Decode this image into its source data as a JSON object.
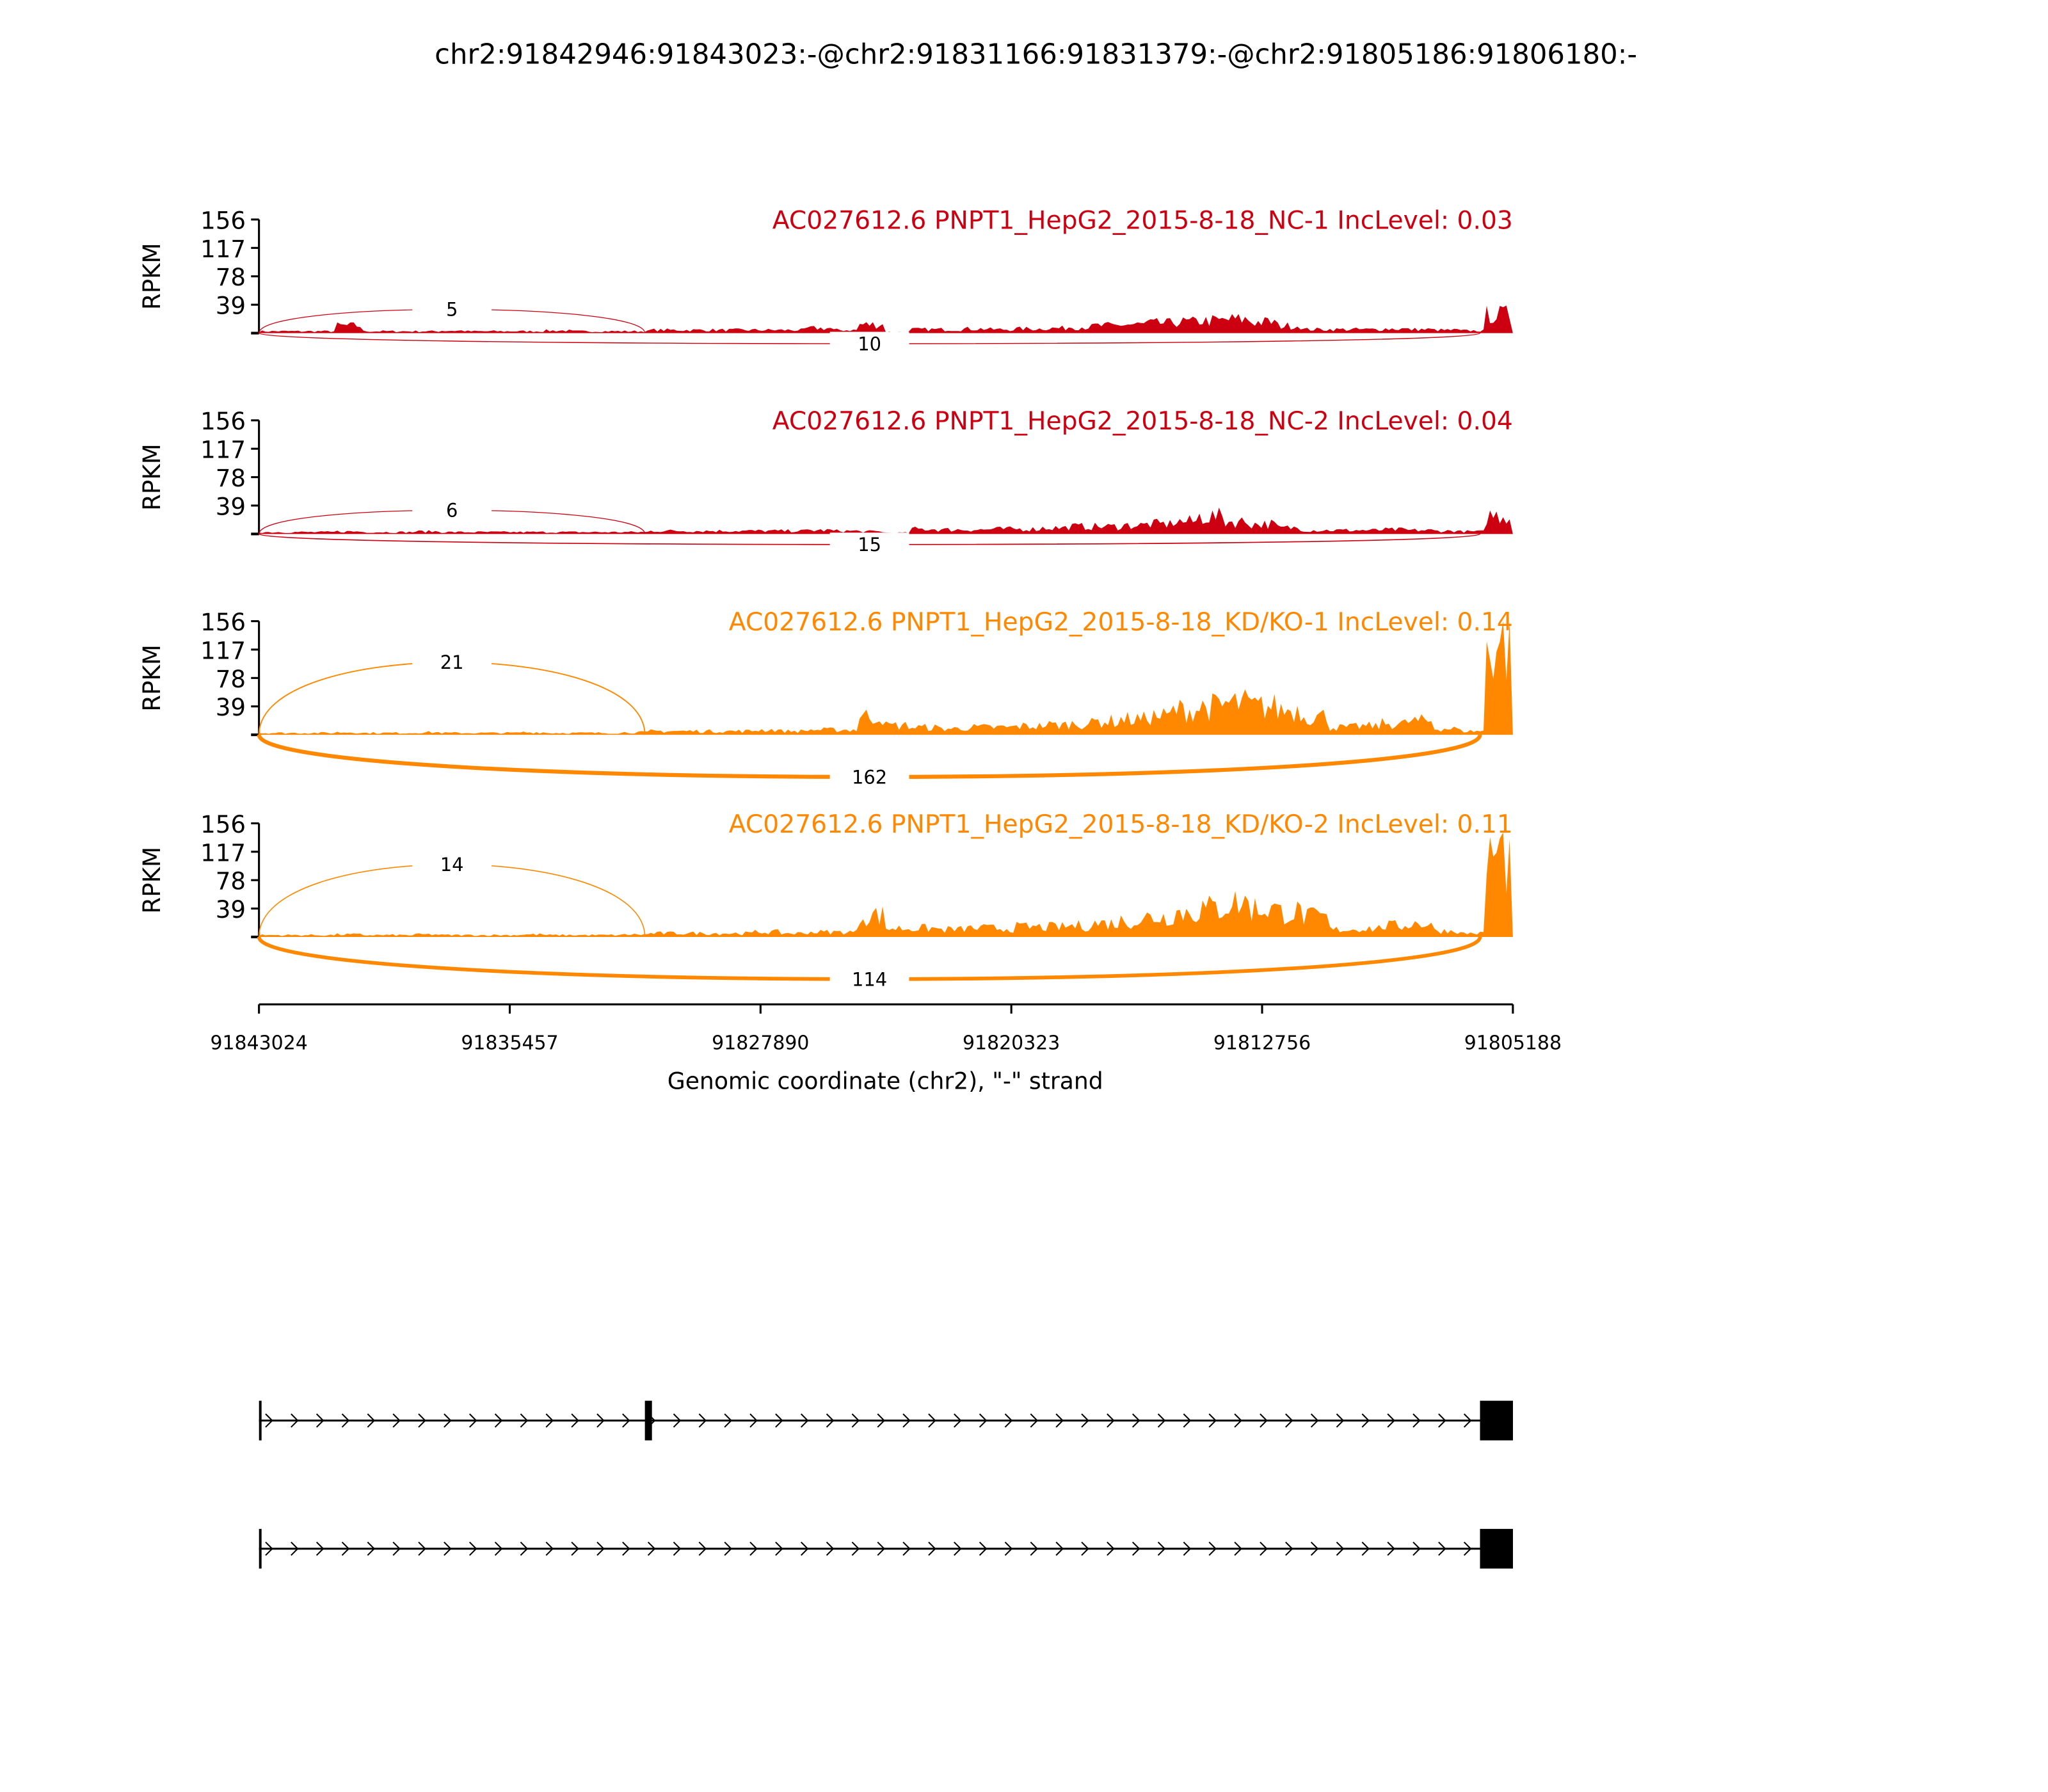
{
  "chart_data": {
    "type": "area",
    "title": "chr2:91842946:91843023:-@chr2:91831166:91831379:-@chr2:91805186:91806180:-",
    "xlabel": "Genomic coordinate (chr2), \"-\" strand",
    "ylabel": "RPKM",
    "xlim": [
      91843024,
      91805188
    ],
    "x_ticks": [
      "91843024",
      "91835457",
      "91827890",
      "91820323",
      "91812756",
      "91805188"
    ],
    "ylim": [
      0,
      156
    ],
    "y_ticks": [
      "156",
      "117",
      "78",
      "39"
    ],
    "colors": {
      "NC": "#cc0011",
      "KD": "#ff8800"
    },
    "tracks": [
      {
        "label": "AC027612.6 PNPT1_HepG2_2015-8-18_NC-1 IncLevel: 0.03",
        "group": "NC",
        "junctions": [
          {
            "from": 91843023,
            "to": 91831379,
            "count": "5",
            "side": "top"
          },
          {
            "from": 91843023,
            "to": 91806180,
            "count": "10",
            "side": "bottom"
          }
        ],
        "coverage_bins": [
          3,
          3,
          3,
          12,
          3,
          3,
          3,
          4,
          3,
          3,
          3,
          4,
          3,
          3,
          3,
          5,
          5,
          5,
          5,
          5,
          5,
          8,
          5,
          14,
          2,
          6,
          6,
          7,
          6,
          7,
          8,
          10,
          12,
          14,
          16,
          18,
          20,
          22,
          18,
          12,
          6,
          6,
          6,
          7,
          6,
          5,
          4,
          30
        ]
      },
      {
        "label": "AC027612.6 PNPT1_HepG2_2015-8-18_NC-2 IncLevel: 0.04",
        "group": "NC",
        "junctions": [
          {
            "from": 91843023,
            "to": 91831379,
            "count": "6",
            "side": "top"
          },
          {
            "from": 91843023,
            "to": 91806180,
            "count": "15",
            "side": "bottom"
          }
        ],
        "coverage_bins": [
          3,
          3,
          3,
          4,
          3,
          3,
          4,
          3,
          3,
          3,
          3,
          3,
          3,
          3,
          3,
          5,
          5,
          5,
          5,
          5,
          5,
          6,
          5,
          4,
          2,
          8,
          7,
          7,
          8,
          8,
          10,
          12,
          12,
          14,
          16,
          20,
          28,
          20,
          16,
          10,
          6,
          6,
          6,
          7,
          6,
          5,
          4,
          30
        ]
      },
      {
        "label": "AC027612.6 PNPT1_HepG2_2015-8-18_KD/KO-1 IncLevel: 0.14",
        "group": "KD",
        "junctions": [
          {
            "from": 91843023,
            "to": 91831379,
            "count": "21",
            "side": "top"
          },
          {
            "from": 91843023,
            "to": 91806180,
            "count": "162",
            "side": "bottom"
          }
        ],
        "coverage_bins": [
          3,
          3,
          3,
          4,
          3,
          3,
          4,
          3,
          3,
          3,
          4,
          3,
          3,
          3,
          4,
          6,
          6,
          6,
          6,
          8,
          6,
          8,
          8,
          30,
          15,
          12,
          10,
          12,
          12,
          14,
          16,
          18,
          22,
          25,
          30,
          40,
          45,
          50,
          45,
          40,
          30,
          12,
          14,
          18,
          22,
          10,
          6,
          150
        ]
      },
      {
        "label": "AC027612.6 PNPT1_HepG2_2015-8-18_KD/KO-2 IncLevel: 0.11",
        "group": "KD",
        "junctions": [
          {
            "from": 91843023,
            "to": 91831379,
            "count": "14",
            "side": "top"
          },
          {
            "from": 91843023,
            "to": 91806180,
            "count": "114",
            "side": "bottom"
          }
        ],
        "coverage_bins": [
          3,
          3,
          3,
          4,
          3,
          3,
          4,
          3,
          3,
          3,
          4,
          3,
          3,
          3,
          4,
          6,
          6,
          6,
          6,
          8,
          6,
          8,
          8,
          35,
          14,
          14,
          12,
          14,
          14,
          16,
          16,
          18,
          22,
          26,
          32,
          40,
          46,
          55,
          46,
          40,
          32,
          12,
          14,
          18,
          22,
          10,
          6,
          130
        ]
      }
    ],
    "transcripts": [
      {
        "exons": [
          [
            91843023,
            91842946
          ],
          [
            91831379,
            91831166
          ],
          [
            91806180,
            91805186
          ]
        ]
      },
      {
        "exons": [
          [
            91843023,
            91842946
          ],
          [
            91806180,
            91805186
          ]
        ]
      }
    ]
  }
}
